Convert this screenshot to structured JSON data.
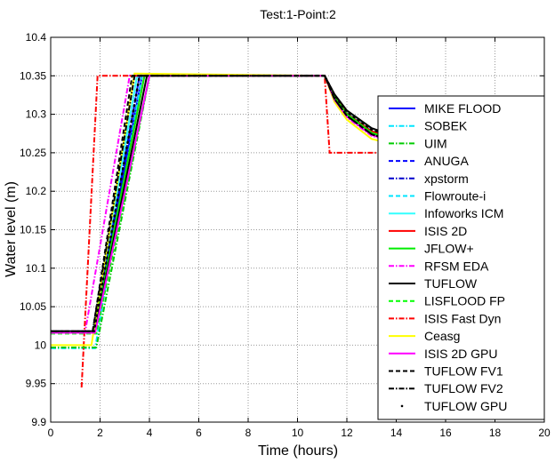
{
  "chart_data": {
    "type": "line",
    "title": "Test:1-Point:2",
    "xlabel": "Time (hours)",
    "ylabel": "Water level (m)",
    "xlim": [
      0,
      20
    ],
    "ylim": [
      9.9,
      10.4
    ],
    "xticks": [
      "0",
      "2",
      "4",
      "6",
      "8",
      "10",
      "12",
      "14",
      "16",
      "18",
      "20"
    ],
    "yticks": [
      "9.9",
      "9.95",
      "10",
      "10.05",
      "10.1",
      "10.15",
      "10.2",
      "10.25",
      "10.3",
      "10.35",
      "10.4"
    ],
    "grid": true,
    "legend_position": "right",
    "series": [
      {
        "name": "MIKE FLOOD",
        "color": "#0000ff",
        "style": "solid",
        "points": [
          [
            0,
            10.018
          ],
          [
            1.75,
            10.018
          ],
          [
            3.7,
            10.35
          ],
          [
            11.1,
            10.35
          ],
          [
            11.5,
            10.322
          ],
          [
            12,
            10.3
          ],
          [
            13,
            10.276
          ],
          [
            14,
            10.266
          ],
          [
            16,
            10.259
          ],
          [
            20,
            10.256
          ]
        ]
      },
      {
        "name": "SOBEK",
        "color": "#00e5ff",
        "style": "dashdot",
        "points": [
          [
            0,
            9.996
          ],
          [
            1.8,
            9.996
          ],
          [
            3.7,
            10.35
          ],
          [
            11.1,
            10.35
          ],
          [
            11.5,
            10.324
          ],
          [
            12,
            10.302
          ],
          [
            13,
            10.279
          ],
          [
            14,
            10.268
          ],
          [
            16,
            10.261
          ],
          [
            20,
            10.258
          ]
        ]
      },
      {
        "name": "UIM",
        "color": "#00cc00",
        "style": "dashdot",
        "points": [
          [
            0,
            9.997
          ],
          [
            1.85,
            9.997
          ],
          [
            4.0,
            10.35
          ],
          [
            11.1,
            10.35
          ],
          [
            11.5,
            10.321
          ],
          [
            12,
            10.299
          ],
          [
            13,
            10.275
          ],
          [
            14,
            10.265
          ],
          [
            16,
            10.258
          ],
          [
            20,
            10.255
          ]
        ]
      },
      {
        "name": "ANUGA",
        "color": "#0000ff",
        "style": "dashed",
        "points": [
          [
            0,
            10.017
          ],
          [
            1.75,
            10.017
          ],
          [
            3.6,
            10.35
          ],
          [
            11.1,
            10.35
          ],
          [
            11.5,
            10.321
          ],
          [
            12,
            10.299
          ],
          [
            13,
            10.275
          ],
          [
            14,
            10.265
          ],
          [
            16,
            10.258
          ],
          [
            20,
            10.255
          ]
        ]
      },
      {
        "name": "xpstorm",
        "color": "#0000cc",
        "style": "dashdot",
        "points": [
          [
            0,
            10.017
          ],
          [
            1.75,
            10.017
          ],
          [
            3.6,
            10.35
          ],
          [
            11.1,
            10.35
          ],
          [
            11.5,
            10.322
          ],
          [
            12,
            10.3
          ],
          [
            13,
            10.276
          ],
          [
            14,
            10.266
          ],
          [
            16,
            10.259
          ],
          [
            20,
            10.256
          ]
        ]
      },
      {
        "name": "Flowroute-i",
        "color": "#00e5ff",
        "style": "dashed",
        "points": [
          [
            0,
            10.016
          ],
          [
            1.7,
            10.016
          ],
          [
            3.5,
            10.35
          ],
          [
            11.1,
            10.35
          ],
          [
            11.5,
            10.323
          ],
          [
            12,
            10.301
          ],
          [
            13,
            10.277
          ],
          [
            14,
            10.267
          ],
          [
            16,
            10.26
          ],
          [
            20,
            10.257
          ]
        ]
      },
      {
        "name": "Infoworks ICM",
        "color": "#33ffff",
        "style": "solid",
        "points": [
          [
            0,
            10.016
          ],
          [
            1.7,
            10.016
          ],
          [
            3.5,
            10.35
          ],
          [
            11.1,
            10.35
          ],
          [
            11.5,
            10.324
          ],
          [
            12,
            10.302
          ],
          [
            13,
            10.278
          ],
          [
            14,
            10.268
          ],
          [
            16,
            10.261
          ],
          [
            20,
            10.259
          ]
        ]
      },
      {
        "name": "ISIS 2D",
        "color": "#ff0000",
        "style": "solid",
        "points": [
          [
            0,
            10.016
          ],
          [
            1.75,
            10.016
          ],
          [
            3.8,
            10.35
          ],
          [
            11.1,
            10.35
          ],
          [
            11.5,
            10.323
          ],
          [
            12,
            10.301
          ],
          [
            13,
            10.278
          ],
          [
            14,
            10.268
          ],
          [
            16,
            10.262
          ],
          [
            20,
            10.262
          ]
        ]
      },
      {
        "name": "JFLOW+",
        "color": "#00ee00",
        "style": "solid",
        "points": [
          [
            0,
            10.016
          ],
          [
            1.75,
            10.016
          ],
          [
            3.8,
            10.35
          ],
          [
            11.1,
            10.35
          ],
          [
            11.5,
            10.322
          ],
          [
            12,
            10.3
          ],
          [
            13,
            10.276
          ],
          [
            14,
            10.266
          ],
          [
            16,
            10.259
          ],
          [
            20,
            10.256
          ]
        ]
      },
      {
        "name": "RFSM EDA",
        "color": "#ff00ff",
        "style": "dashdot",
        "points": [
          [
            0,
            10.018
          ],
          [
            1.4,
            10.018
          ],
          [
            3.2,
            10.35
          ],
          [
            11.1,
            10.35
          ],
          [
            11.5,
            10.318
          ],
          [
            12,
            10.296
          ],
          [
            13,
            10.272
          ],
          [
            14,
            10.263
          ],
          [
            16,
            10.257
          ],
          [
            20,
            10.254
          ]
        ]
      },
      {
        "name": "TUFLOW",
        "color": "#000000",
        "style": "solid",
        "points": [
          [
            0,
            10.018
          ],
          [
            1.8,
            10.018
          ],
          [
            3.9,
            10.35
          ],
          [
            11.1,
            10.35
          ],
          [
            11.5,
            10.326
          ],
          [
            12,
            10.305
          ],
          [
            13,
            10.282
          ],
          [
            14,
            10.271
          ],
          [
            16,
            10.262
          ],
          [
            20,
            10.257
          ]
        ]
      },
      {
        "name": "LISFLOOD FP",
        "color": "#00ff00",
        "style": "dashed",
        "points": [
          [
            0,
            10.015
          ],
          [
            1.85,
            10.015
          ],
          [
            4.0,
            10.35
          ],
          [
            11.1,
            10.35
          ],
          [
            11.5,
            10.321
          ],
          [
            12,
            10.299
          ],
          [
            13,
            10.275
          ],
          [
            14,
            10.265
          ],
          [
            16,
            10.258
          ],
          [
            20,
            10.255
          ]
        ]
      },
      {
        "name": "ISIS Fast Dyn",
        "color": "#ff0000",
        "style": "dashdot",
        "points": [
          [
            1.25,
            9.945
          ],
          [
            1.9,
            10.35
          ],
          [
            11.1,
            10.35
          ],
          [
            11.3,
            10.25
          ],
          [
            20,
            10.25
          ]
        ]
      },
      {
        "name": "Ceasg",
        "color": "#ffff00",
        "style": "solid",
        "points": [
          [
            0,
            10.0
          ],
          [
            1.65,
            10.0
          ],
          [
            3.4,
            10.353
          ],
          [
            11.1,
            10.35
          ],
          [
            11.5,
            10.316
          ],
          [
            12,
            10.293
          ],
          [
            13,
            10.268
          ],
          [
            14,
            10.26
          ],
          [
            16,
            10.255
          ],
          [
            20,
            10.253
          ]
        ]
      },
      {
        "name": "ISIS 2D GPU",
        "color": "#ff00ff",
        "style": "solid",
        "points": [
          [
            0,
            10.016
          ],
          [
            1.8,
            10.016
          ],
          [
            4.0,
            10.35
          ],
          [
            11.1,
            10.35
          ],
          [
            11.5,
            10.319
          ],
          [
            12,
            10.297
          ],
          [
            13,
            10.273
          ],
          [
            14,
            10.264
          ],
          [
            16,
            10.257
          ],
          [
            20,
            10.254
          ]
        ]
      },
      {
        "name": "TUFLOW FV1",
        "color": "#000000",
        "style": "dashed",
        "points": [
          [
            0,
            10.018
          ],
          [
            1.7,
            10.018
          ],
          [
            3.3,
            10.35
          ],
          [
            11.1,
            10.35
          ],
          [
            11.5,
            10.32
          ],
          [
            12,
            10.298
          ],
          [
            13,
            10.274
          ],
          [
            14,
            10.264
          ],
          [
            16,
            10.257
          ],
          [
            20,
            10.252
          ]
        ]
      },
      {
        "name": "TUFLOW FV2",
        "color": "#000000",
        "style": "dashdot",
        "points": [
          [
            0,
            10.018
          ],
          [
            1.7,
            10.018
          ],
          [
            3.4,
            10.35
          ],
          [
            11.1,
            10.35
          ],
          [
            11.5,
            10.32
          ],
          [
            12,
            10.298
          ],
          [
            13,
            10.274
          ],
          [
            14,
            10.264
          ],
          [
            16,
            10.257
          ],
          [
            20,
            10.253
          ]
        ]
      },
      {
        "name": "TUFLOW GPU",
        "color": "#000000",
        "style": "dotted",
        "points": [
          [
            0,
            10.018
          ],
          [
            1.75,
            10.018
          ],
          [
            3.6,
            10.35
          ],
          [
            11.1,
            10.35
          ],
          [
            11.5,
            10.325
          ],
          [
            12,
            10.303
          ],
          [
            13,
            10.28
          ],
          [
            14,
            10.27
          ],
          [
            16,
            10.261
          ],
          [
            20,
            10.256
          ]
        ]
      }
    ]
  }
}
